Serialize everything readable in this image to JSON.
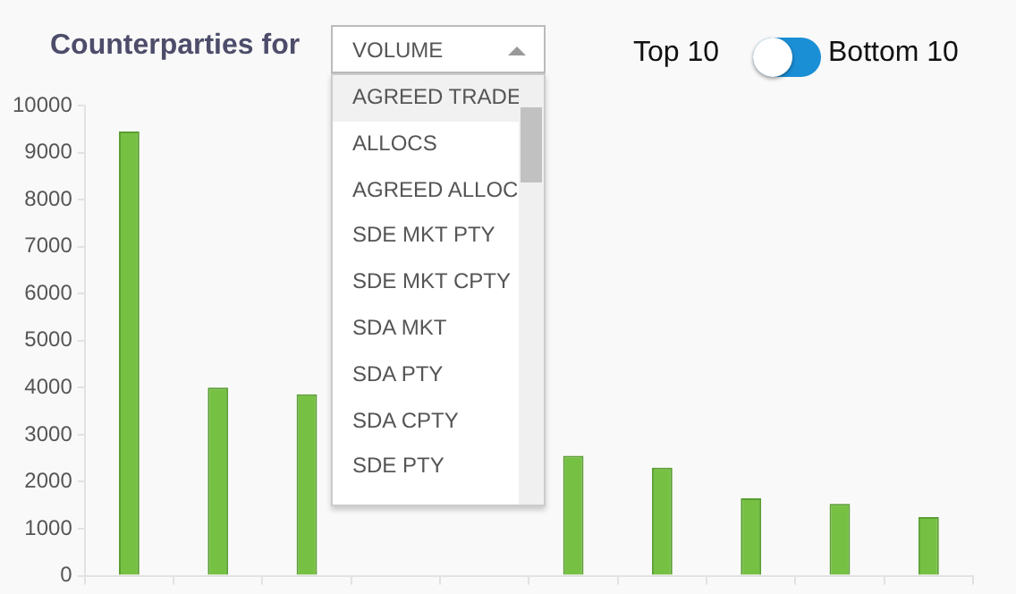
{
  "chart_data": {
    "type": "bar",
    "title": "Counterparties for",
    "categories": [
      null,
      null,
      null,
      null,
      null,
      null,
      null,
      null,
      null,
      null
    ],
    "values": [
      9450,
      4000,
      3860,
      null,
      null,
      2550,
      2300,
      1650,
      1530,
      1250
    ],
    "color": "#76c043",
    "ylim": [
      0,
      10000
    ],
    "yticks": [
      0,
      1000,
      2000,
      3000,
      4000,
      5000,
      6000,
      7000,
      8000,
      9000,
      10000
    ],
    "grid": false,
    "legend": false,
    "annotations": [
      "VOLUME",
      "AGREED TRADE",
      "ALLOCS",
      "AGREED ALLOC",
      "SDE MKT PTY",
      "SDE MKT CPTY",
      "SDA MKT",
      "SDA PTY",
      "SDA CPTY",
      "SDE PTY",
      "Top 10",
      "Bottom 10"
    ]
  }
}
